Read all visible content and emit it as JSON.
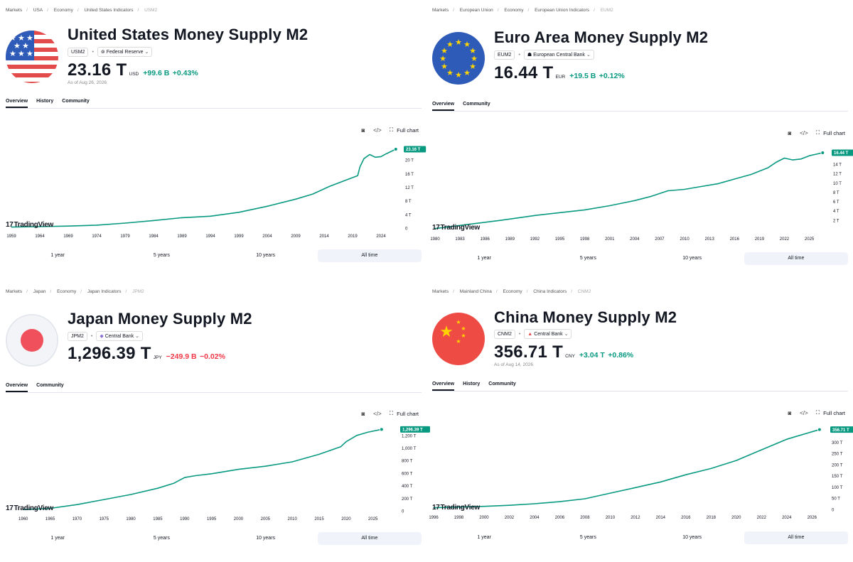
{
  "panels": [
    {
      "breadcrumbs": [
        "Markets",
        "USA",
        "Economy",
        "United States Indicators",
        "USM2"
      ],
      "title": "United States Money Supply M2",
      "symbol": "USM2",
      "source": "Federal Reserve",
      "source_icon": "federal-reserve-seal-icon",
      "value": "23.16 T",
      "unit": "USD",
      "change": "+99.6 B",
      "change_pct": "+0.43%",
      "direction": "up",
      "as_of": "As of Aug 26, 2026",
      "tabs": [
        "Overview",
        "History",
        "Community"
      ],
      "tools": {
        "snapshot_icon": "camera-icon",
        "embed_icon": "code-icon",
        "full_chart": "Full chart"
      },
      "logo_text": "TradingView",
      "ranges": [
        "1 year",
        "5 years",
        "10 years",
        "All time"
      ],
      "active_range": "All time",
      "flag": "us-flag-icon"
    },
    {
      "breadcrumbs": [
        "Markets",
        "European Union",
        "Economy",
        "European Union Indicators",
        "EUM2"
      ],
      "title": "Euro Area Money Supply M2",
      "symbol": "EUM2",
      "source": "European Central Bank",
      "source_icon": "ecb-icon",
      "value": "16.44 T",
      "unit": "EUR",
      "change": "+19.5 B",
      "change_pct": "+0.12%",
      "direction": "up",
      "as_of": "",
      "tabs": [
        "Overview",
        "Community"
      ],
      "tools": {
        "snapshot_icon": "camera-icon",
        "embed_icon": "code-icon",
        "full_chart": "Full chart"
      },
      "logo_text": "TradingView",
      "ranges": [
        "1 year",
        "5 years",
        "10 years",
        "All time"
      ],
      "active_range": "All time",
      "flag": "eu-flag-icon"
    },
    {
      "breadcrumbs": [
        "Markets",
        "Japan",
        "Economy",
        "Japan Indicators",
        "JPM2"
      ],
      "title": "Japan Money Supply M2",
      "symbol": "JPM2",
      "source": "Central Bank",
      "source_icon": "central-bank-icon",
      "value": "1,296.39 T",
      "unit": "JPY",
      "change": "−249.9 B",
      "change_pct": "−0.02%",
      "direction": "down",
      "as_of": "",
      "tabs": [
        "Overview",
        "Community"
      ],
      "tools": {
        "snapshot_icon": "camera-icon",
        "embed_icon": "code-icon",
        "full_chart": "Full chart"
      },
      "logo_text": "TradingView",
      "ranges": [
        "1 year",
        "5 years",
        "10 years",
        "All time"
      ],
      "active_range": "All time",
      "flag": "japan-flag-icon"
    },
    {
      "breadcrumbs": [
        "Markets",
        "Mainland China",
        "Economy",
        "China Indicators",
        "CNM2"
      ],
      "title": "China Money Supply M2",
      "symbol": "CNM2",
      "source": "Central Bank",
      "source_icon": "central-bank-icon",
      "value": "356.71 T",
      "unit": "CNY",
      "change": "+3.04 T",
      "change_pct": "+0.86%",
      "direction": "up",
      "as_of": "As of Aug 14, 2026",
      "tabs": [
        "Overview",
        "History",
        "Community"
      ],
      "tools": {
        "snapshot_icon": "camera-icon",
        "embed_icon": "code-icon",
        "full_chart": "Full chart"
      },
      "logo_text": "TradingView",
      "ranges": [
        "1 year",
        "5 years",
        "10 years",
        "All time"
      ],
      "active_range": "All time",
      "flag": "china-flag-icon"
    }
  ],
  "colors": {
    "line": "#089981",
    "up": "#089981",
    "down": "#f23645",
    "axis_text": "#131722"
  },
  "chart_data": [
    {
      "type": "line",
      "title": "United States Money Supply M2",
      "xlabel": "",
      "ylabel": "",
      "x_ticks": [
        1959,
        1964,
        1969,
        1974,
        1979,
        1984,
        1989,
        1994,
        1999,
        2004,
        2009,
        2014,
        2019,
        2024
      ],
      "y_ticks": [
        0,
        4,
        8,
        12,
        16,
        20
      ],
      "y_tick_labels": [
        "0",
        "4 T",
        "8 T",
        "12 T",
        "16 T",
        "20 T"
      ],
      "xlim": [
        1958,
        2027
      ],
      "ylim": [
        0,
        24
      ],
      "last_label": "23.16 T",
      "x": [
        1959,
        1964,
        1969,
        1974,
        1979,
        1984,
        1989,
        1994,
        1999,
        2004,
        2009,
        2012,
        2015,
        2018,
        2019.9,
        2020.3,
        2021,
        2022,
        2023,
        2024,
        2025,
        2026.6
      ],
      "values": [
        0.29,
        0.42,
        0.59,
        0.86,
        1.47,
        2.21,
        3.05,
        3.49,
        4.64,
        6.41,
        8.49,
        10.0,
        12.3,
        14.2,
        15.4,
        18.0,
        20.4,
        21.6,
        20.8,
        21.0,
        21.9,
        23.16
      ],
      "grid": false
    },
    {
      "type": "line",
      "title": "Euro Area Money Supply M2",
      "xlabel": "",
      "ylabel": "",
      "x_ticks": [
        1980,
        1983,
        1986,
        1989,
        1992,
        1995,
        1998,
        2001,
        2004,
        2007,
        2010,
        2013,
        2016,
        2019,
        2022,
        2025
      ],
      "y_ticks": [
        2,
        4,
        6,
        8,
        10,
        12,
        14
      ],
      "y_tick_labels": [
        "2 T",
        "4 T",
        "6 T",
        "8 T",
        "10 T",
        "12 T",
        "14 T"
      ],
      "xlim": [
        1980,
        2027
      ],
      "ylim": [
        0,
        17.5
      ],
      "last_label": "16.44 T",
      "x": [
        1980,
        1984,
        1988,
        1992,
        1995,
        1998,
        2001,
        2004,
        2006,
        2008,
        2010,
        2012,
        2014,
        2016,
        2018,
        2020,
        2021,
        2022,
        2023,
        2024,
        2025,
        2026.6
      ],
      "values": [
        0.2,
        1.1,
        2.0,
        3.0,
        3.6,
        4.2,
        5.1,
        6.2,
        7.1,
        8.3,
        8.6,
        9.2,
        9.8,
        10.8,
        11.8,
        13.2,
        14.4,
        15.3,
        14.9,
        15.1,
        15.8,
        16.44
      ],
      "grid": false
    },
    {
      "type": "line",
      "title": "Japan Money Supply M2",
      "xlabel": "",
      "ylabel": "",
      "x_ticks": [
        1960,
        1965,
        1970,
        1975,
        1980,
        1985,
        1990,
        1995,
        2000,
        2005,
        2010,
        2015,
        2020,
        2025
      ],
      "y_ticks": [
        0,
        200,
        400,
        600,
        800,
        1000,
        1200
      ],
      "y_tick_labels": [
        "0",
        "200 T",
        "400 T",
        "600 T",
        "800 T",
        "1,000 T",
        "1,200 T"
      ],
      "xlim": [
        1957,
        2029
      ],
      "ylim": [
        0,
        1300
      ],
      "last_label": "1,296.39 T",
      "x": [
        1960,
        1965,
        1970,
        1975,
        1980,
        1985,
        1988,
        1990,
        1992,
        1995,
        2000,
        2005,
        2010,
        2015,
        2019,
        2020,
        2022,
        2024,
        2026.6
      ],
      "values": [
        20,
        40,
        100,
        180,
        260,
        360,
        440,
        530,
        560,
        590,
        660,
        710,
        780,
        900,
        1020,
        1100,
        1200,
        1250,
        1296.39
      ],
      "grid": false
    },
    {
      "type": "line",
      "title": "China Money Supply M2",
      "xlabel": "",
      "ylabel": "",
      "x_ticks": [
        1996,
        1998,
        2000,
        2002,
        2004,
        2006,
        2008,
        2010,
        2012,
        2014,
        2016,
        2018,
        2020,
        2022,
        2024,
        2026
      ],
      "y_ticks": [
        0,
        50,
        100,
        150,
        200,
        250,
        300
      ],
      "y_tick_labels": [
        "0",
        "50 T",
        "100 T",
        "150 T",
        "200 T",
        "250 T",
        "300 T"
      ],
      "xlim": [
        1996,
        2027
      ],
      "ylim": [
        0,
        365
      ],
      "last_label": "356.71 T",
      "x": [
        1996,
        1998,
        2000,
        2002,
        2004,
        2006,
        2008,
        2010,
        2012,
        2014,
        2016,
        2018,
        2020,
        2022,
        2024,
        2026.6
      ],
      "values": [
        7.6,
        10.5,
        13.8,
        18.5,
        25.3,
        34.6,
        47.5,
        72.6,
        97.4,
        122.8,
        155.0,
        182.7,
        218.7,
        266.4,
        313.5,
        356.71
      ],
      "grid": false
    }
  ]
}
